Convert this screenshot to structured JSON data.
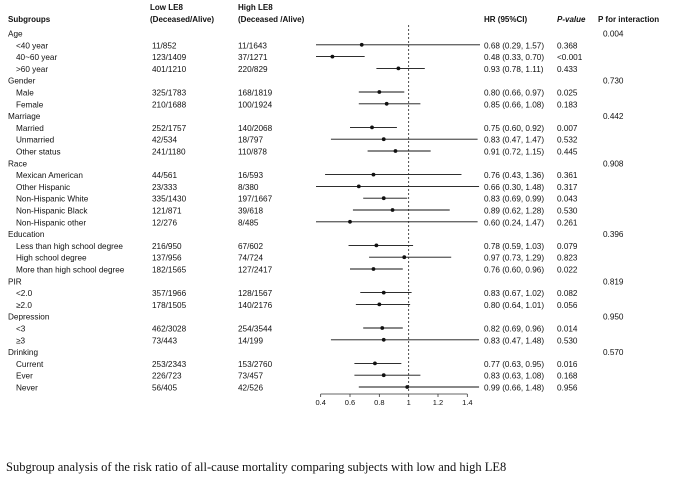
{
  "header": {
    "subgroups": "Subgroups",
    "low_le8": "Low LE8",
    "low_le8_sub": "(Deceased/Alive)",
    "high_le8": "High LE8",
    "high_le8_sub": "(Deceased /Alive)",
    "hr": "HR (95%CI)",
    "p_value": "P-value",
    "p_interaction": "P for interaction"
  },
  "caption": "Subgroup analysis of the risk ratio of all-cause mortality comparing subjects with low and high LE8",
  "chart_data": {
    "type": "forest",
    "reference_line": 1.0,
    "xlim": [
      0.3,
      1.5
    ],
    "x_ticks": [
      "0.4",
      "0.6",
      "0.8",
      "1",
      "1.2",
      "1.4"
    ],
    "x_tick_values": [
      0.4,
      0.6,
      0.8,
      1.0,
      1.2,
      1.4
    ],
    "groups": [
      {
        "name": "Age",
        "p_interaction": "0.004",
        "rows": [
          {
            "label": "<40 year",
            "low": "11/852",
            "high": "11/1643",
            "hr_text": "0.68 (0.29, 1.57)",
            "p": "0.368",
            "hr": 0.68,
            "lo": 0.29,
            "hi": 1.57
          },
          {
            "label": "40~60 year",
            "low": "123/1409",
            "high": "37/1271",
            "hr_text": "0.48 (0.33, 0.70)",
            "p": "<0.001",
            "hr": 0.48,
            "lo": 0.33,
            "hi": 0.7
          },
          {
            "label": ">60 year",
            "low": "401/1210",
            "high": "220/829",
            "hr_text": "0.93 (0.78, 1.11)",
            "p": "0.433",
            "hr": 0.93,
            "lo": 0.78,
            "hi": 1.11
          }
        ]
      },
      {
        "name": "Gender",
        "p_interaction": "0.730",
        "rows": [
          {
            "label": "Male",
            "low": "325/1783",
            "high": "168/1819",
            "hr_text": "0.80 (0.66, 0.97)",
            "p": "0.025",
            "hr": 0.8,
            "lo": 0.66,
            "hi": 0.97
          },
          {
            "label": "Female",
            "low": "210/1688",
            "high": "100/1924",
            "hr_text": "0.85 (0.66, 1.08)",
            "p": "0.183",
            "hr": 0.85,
            "lo": 0.66,
            "hi": 1.08
          }
        ]
      },
      {
        "name": "Marriage",
        "p_interaction": "0.442",
        "rows": [
          {
            "label": "Married",
            "low": "252/1757",
            "high": "140/2068",
            "hr_text": "0.75 (0.60, 0.92)",
            "p": "0.007",
            "hr": 0.75,
            "lo": 0.6,
            "hi": 0.92
          },
          {
            "label": "Unmarried",
            "low": "42/534",
            "high": "18/797",
            "hr_text": "0.83 (0.47, 1.47)",
            "p": "0.532",
            "hr": 0.83,
            "lo": 0.47,
            "hi": 1.47
          },
          {
            "label": "Other status",
            "low": "241/1180",
            "high": "110/878",
            "hr_text": "0.91 (0.72, 1.15)",
            "p": "0.445",
            "hr": 0.91,
            "lo": 0.72,
            "hi": 1.15
          }
        ]
      },
      {
        "name": "Race",
        "p_interaction": "0.908",
        "rows": [
          {
            "label": "Mexican American",
            "low": "44/561",
            "high": "16/593",
            "hr_text": "0.76 (0.43, 1.36)",
            "p": "0.361",
            "hr": 0.76,
            "lo": 0.43,
            "hi": 1.36
          },
          {
            "label": "Other Hispanic",
            "low": "23/333",
            "high": "8/380",
            "hr_text": "0.66 (0.30, 1.48)",
            "p": "0.317",
            "hr": 0.66,
            "lo": 0.3,
            "hi": 1.48
          },
          {
            "label": "Non-Hispanic White",
            "low": "335/1430",
            "high": "197/1667",
            "hr_text": "0.83 (0.69, 0.99)",
            "p": "0.043",
            "hr": 0.83,
            "lo": 0.69,
            "hi": 0.99
          },
          {
            "label": "Non-Hispanic Black",
            "low": "121/871",
            "high": "39/618",
            "hr_text": "0.89 (0.62, 1.28)",
            "p": "0.530",
            "hr": 0.89,
            "lo": 0.62,
            "hi": 1.28
          },
          {
            "label": "Non-Hispanic other",
            "low": "12/276",
            "high": "8/485",
            "hr_text": "0.60 (0.24, 1.47)",
            "p": "0.261",
            "hr": 0.6,
            "lo": 0.24,
            "hi": 1.47
          }
        ]
      },
      {
        "name": "Education",
        "p_interaction": "0.396",
        "rows": [
          {
            "label": "Less than high school degree",
            "low": "216/950",
            "high": "67/602",
            "hr_text": "0.78 (0.59, 1.03)",
            "p": "0.079",
            "hr": 0.78,
            "lo": 0.59,
            "hi": 1.03
          },
          {
            "label": "High school degree",
            "low": "137/956",
            "high": "74/724",
            "hr_text": "0.97 (0.73, 1.29)",
            "p": "0.823",
            "hr": 0.97,
            "lo": 0.73,
            "hi": 1.29
          },
          {
            "label": "More than high school degree",
            "low": "182/1565",
            "high": "127/2417",
            "hr_text": "0.76 (0.60, 0.96)",
            "p": "0.022",
            "hr": 0.76,
            "lo": 0.6,
            "hi": 0.96
          }
        ]
      },
      {
        "name": "PIR",
        "p_interaction": "0.819",
        "rows": [
          {
            "label": "<2.0",
            "low": "357/1966",
            "high": "128/1567",
            "hr_text": "0.83 (0.67, 1.02)",
            "p": "0.082",
            "hr": 0.83,
            "lo": 0.67,
            "hi": 1.02
          },
          {
            "label": "≥2.0",
            "low": "178/1505",
            "high": "140/2176",
            "hr_text": "0.80 (0.64, 1.01)",
            "p": "0.056",
            "hr": 0.8,
            "lo": 0.64,
            "hi": 1.01
          }
        ]
      },
      {
        "name": "Depression",
        "p_interaction": "0.950",
        "rows": [
          {
            "label": "<3",
            "low": "462/3028",
            "high": "254/3544",
            "hr_text": "0.82 (0.69, 0.96)",
            "p": "0.014",
            "hr": 0.82,
            "lo": 0.69,
            "hi": 0.96
          },
          {
            "label": "≥3",
            "low": "73/443",
            "high": "14/199",
            "hr_text": "0.83 (0.47, 1.48)",
            "p": "0.530",
            "hr": 0.83,
            "lo": 0.47,
            "hi": 1.48
          }
        ]
      },
      {
        "name": "Drinking",
        "p_interaction": "0.570",
        "rows": [
          {
            "label": "Current",
            "low": "253/2343",
            "high": "153/2760",
            "hr_text": "0.77 (0.63, 0.95)",
            "p": "0.016",
            "hr": 0.77,
            "lo": 0.63,
            "hi": 0.95
          },
          {
            "label": "Ever",
            "low": "226/723",
            "high": "73/457",
            "hr_text": "0.83 (0.63, 1.08)",
            "p": "0.168",
            "hr": 0.83,
            "lo": 0.63,
            "hi": 1.08
          },
          {
            "label": "Never",
            "low": "56/405",
            "high": "42/526",
            "hr_text": "0.99 (0.66, 1.48)",
            "p": "0.956",
            "hr": 0.99,
            "lo": 0.66,
            "hi": 1.48
          }
        ]
      }
    ]
  }
}
